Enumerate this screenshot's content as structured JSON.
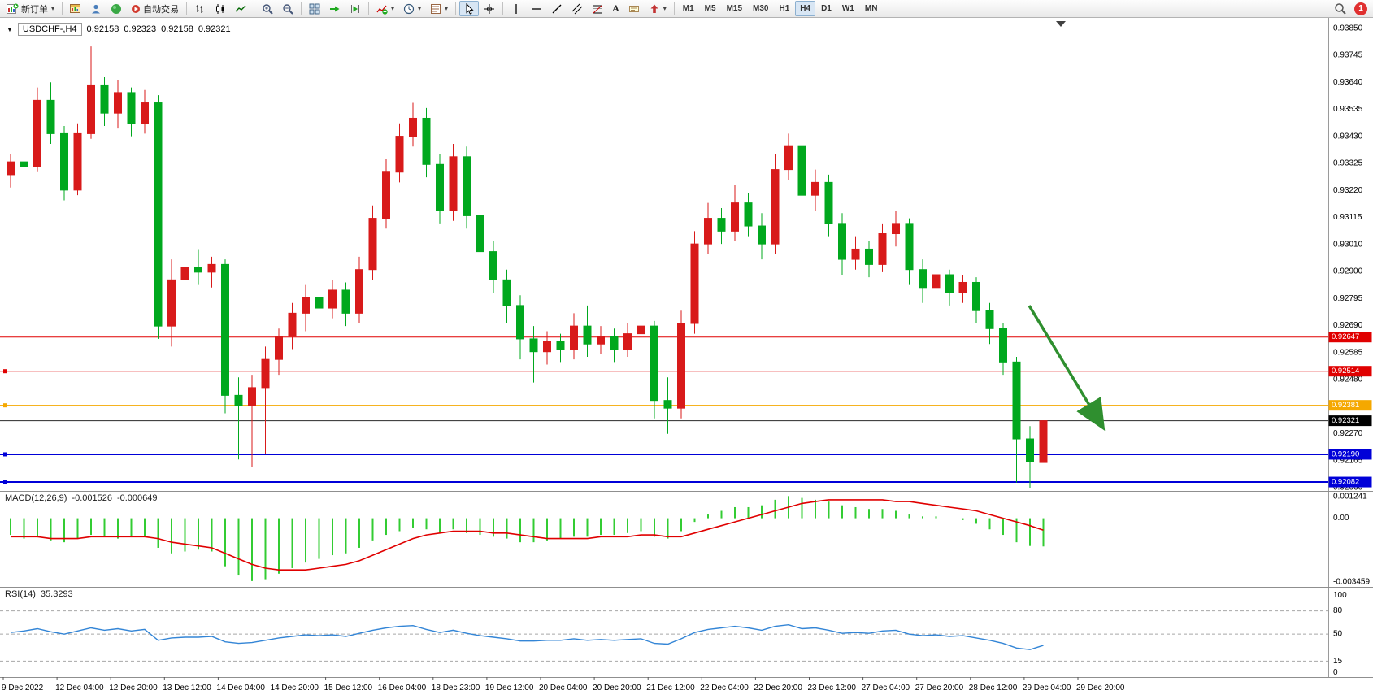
{
  "window": {
    "badge_count": "1"
  },
  "toolbar": {
    "active_timeframe": "H4",
    "items": [
      {
        "name": "new-order-button",
        "icon": "new-order-icon",
        "label": "新订单",
        "caret": true
      },
      {
        "separator": true
      },
      {
        "name": "charts-button",
        "icon": "chart-window-icon"
      },
      {
        "name": "profile-button",
        "icon": "profile-icon"
      },
      {
        "name": "community-button",
        "icon": "community-icon"
      },
      {
        "name": "autotrade-button",
        "icon": "autotrade-icon",
        "label": "自动交易"
      },
      {
        "separator": true
      },
      {
        "name": "bar-chart-button",
        "icon": "bar-chart-icon"
      },
      {
        "name": "candlestick-button",
        "icon": "candlestick-icon"
      },
      {
        "name": "line-chart-button",
        "icon": "line-chart-icon"
      },
      {
        "separator": true
      },
      {
        "name": "zoom-in-button",
        "icon": "zoom-in-icon"
      },
      {
        "name": "zoom-out-button",
        "icon": "zoom-out-icon"
      },
      {
        "separator": true
      },
      {
        "name": "tile-windows-button",
        "icon": "tile-windows-icon"
      },
      {
        "name": "auto-scroll-button",
        "icon": "auto-scroll-icon"
      },
      {
        "name": "chart-shift-button",
        "icon": "chart-shift-icon"
      },
      {
        "separator": true
      },
      {
        "name": "indicators-button",
        "icon": "indicators-icon",
        "caret": true
      },
      {
        "name": "periods-button",
        "icon": "periods-icon",
        "caret": true
      },
      {
        "name": "templates-button",
        "icon": "templates-icon",
        "caret": true
      },
      {
        "separator": true
      },
      {
        "name": "cursor-button",
        "icon": "cursor-icon",
        "active": true
      },
      {
        "name": "crosshair-button",
        "icon": "crosshair-icon"
      },
      {
        "separator": true
      },
      {
        "name": "vertical-line-button",
        "icon": "vertical-line-icon"
      },
      {
        "name": "horizontal-line-button",
        "icon": "horizontal-line-icon"
      },
      {
        "name": "trendline-button",
        "icon": "trendline-icon"
      },
      {
        "name": "channel-button",
        "icon": "channel-icon"
      },
      {
        "name": "fibonacci-button",
        "icon": "fibonacci-icon"
      },
      {
        "name": "text-button",
        "text_icon": "A"
      },
      {
        "name": "text-label-button",
        "icon": "text-label-icon"
      },
      {
        "name": "arrows-button",
        "icon": "arrows-icon",
        "caret": true
      },
      {
        "separator": true
      },
      {
        "name": "tf-m1-button",
        "label": "M1",
        "timeframe": true
      },
      {
        "name": "tf-m5-button",
        "label": "M5",
        "timeframe": true
      },
      {
        "name": "tf-m15-button",
        "label": "M15",
        "timeframe": true
      },
      {
        "name": "tf-m30-button",
        "label": "M30",
        "timeframe": true
      },
      {
        "name": "tf-h1-button",
        "label": "H1",
        "timeframe": true
      },
      {
        "name": "tf-h4-button",
        "label": "H4",
        "timeframe": true
      },
      {
        "name": "tf-d1-button",
        "label": "D1",
        "timeframe": true
      },
      {
        "name": "tf-w1-button",
        "label": "W1",
        "timeframe": true
      },
      {
        "name": "tf-mn-button",
        "label": "MN",
        "timeframe": true
      },
      {
        "spacer": true
      },
      {
        "name": "search-button",
        "icon": "search-icon"
      },
      {
        "name": "notification-badge",
        "badge": "1"
      }
    ]
  },
  "chart": {
    "symbol": "USDCHF-,H4",
    "ohlc": {
      "open": "0.92158",
      "high": "0.92323",
      "low": "0.92158",
      "close": "0.92321"
    },
    "colors": {
      "up": "#d81a1a",
      "down": "#00a81e"
    },
    "price_axis": [
      "0.93850",
      "0.93745",
      "0.93640",
      "0.93535",
      "0.93430",
      "0.93325",
      "0.93220",
      "0.93115",
      "0.93010",
      "0.92900",
      "0.92795",
      "0.92690",
      "0.92585",
      "0.92480",
      "0.92375",
      "0.92270",
      "0.92165",
      "0.92060"
    ],
    "time_axis": [
      "9 Dec 2022",
      "12 Dec 04:00",
      "12 Dec 20:00",
      "13 Dec 12:00",
      "14 Dec 04:00",
      "14 Dec 20:00",
      "15 Dec 12:00",
      "16 Dec 04:00",
      "18 Dec 23:00",
      "19 Dec 12:00",
      "20 Dec 04:00",
      "20 Dec 20:00",
      "21 Dec 12:00",
      "22 Dec 04:00",
      "22 Dec 20:00",
      "23 Dec 12:00",
      "27 Dec 04:00",
      "27 Dec 20:00",
      "28 Dec 12:00",
      "29 Dec 04:00",
      "29 Dec 20:00"
    ],
    "hlines": [
      {
        "label": "0.92647",
        "value": 0.92647,
        "color": "#e00000",
        "width": 1,
        "handle": false
      },
      {
        "label": "0.92514",
        "value": 0.92514,
        "color": "#e00000",
        "width": 1,
        "handle": true
      },
      {
        "label": "0.92381",
        "value": 0.92381,
        "color": "#f5a800",
        "width": 1,
        "handle": true
      },
      {
        "label": "0.92321",
        "value": 0.92321,
        "color": "#2a2a2a",
        "width": 1,
        "handle": false,
        "tag_bg": "#000000"
      },
      {
        "label": "0.92190",
        "value": 0.9219,
        "color": "#0000d8",
        "width": 2,
        "handle": true
      },
      {
        "label": "0.92082",
        "value": 0.92082,
        "color": "#0000d8",
        "width": 2,
        "handle": true
      }
    ],
    "candles": [
      [
        0.9328,
        0.9336,
        0.9323,
        0.9333
      ],
      [
        0.9333,
        0.9345,
        0.9329,
        0.9331
      ],
      [
        0.9331,
        0.9362,
        0.9329,
        0.9357
      ],
      [
        0.9357,
        0.9364,
        0.934,
        0.9344
      ],
      [
        0.9344,
        0.9347,
        0.9318,
        0.9322
      ],
      [
        0.9322,
        0.9348,
        0.932,
        0.9344
      ],
      [
        0.9344,
        0.9378,
        0.9342,
        0.9363
      ],
      [
        0.9363,
        0.9366,
        0.9347,
        0.9352
      ],
      [
        0.9352,
        0.9365,
        0.9346,
        0.936
      ],
      [
        0.936,
        0.9362,
        0.9343,
        0.9348
      ],
      [
        0.9348,
        0.9361,
        0.9344,
        0.9356
      ],
      [
        0.9356,
        0.9359,
        0.9264,
        0.9269
      ],
      [
        0.9269,
        0.9295,
        0.9261,
        0.9287
      ],
      [
        0.9287,
        0.9298,
        0.9283,
        0.9292
      ],
      [
        0.9292,
        0.9299,
        0.9285,
        0.929
      ],
      [
        0.929,
        0.9296,
        0.9284,
        0.9293
      ],
      [
        0.9293,
        0.9295,
        0.9235,
        0.9242
      ],
      [
        0.9242,
        0.9249,
        0.9217,
        0.9238
      ],
      [
        0.9238,
        0.925,
        0.9214,
        0.9245
      ],
      [
        0.9245,
        0.9261,
        0.9219,
        0.9256
      ],
      [
        0.9256,
        0.9268,
        0.925,
        0.9265
      ],
      [
        0.9265,
        0.9278,
        0.926,
        0.9274
      ],
      [
        0.9274,
        0.9285,
        0.9267,
        0.928
      ],
      [
        0.928,
        0.9314,
        0.9256,
        0.9276
      ],
      [
        0.9276,
        0.9287,
        0.9272,
        0.9283
      ],
      [
        0.9283,
        0.9286,
        0.9269,
        0.9274
      ],
      [
        0.9274,
        0.9296,
        0.927,
        0.9291
      ],
      [
        0.9291,
        0.9316,
        0.9287,
        0.9311
      ],
      [
        0.9311,
        0.9334,
        0.9307,
        0.9329
      ],
      [
        0.9329,
        0.9348,
        0.9325,
        0.9343
      ],
      [
        0.9343,
        0.9356,
        0.9339,
        0.935
      ],
      [
        0.935,
        0.9354,
        0.9327,
        0.9332
      ],
      [
        0.9332,
        0.9336,
        0.9309,
        0.9314
      ],
      [
        0.9314,
        0.934,
        0.931,
        0.9335
      ],
      [
        0.9335,
        0.9339,
        0.9307,
        0.9312
      ],
      [
        0.9312,
        0.9317,
        0.9293,
        0.9298
      ],
      [
        0.9298,
        0.9302,
        0.9282,
        0.9287
      ],
      [
        0.9287,
        0.9291,
        0.927,
        0.9277
      ],
      [
        0.9277,
        0.9281,
        0.9256,
        0.9264
      ],
      [
        0.9264,
        0.9269,
        0.9247,
        0.9259
      ],
      [
        0.9259,
        0.9267,
        0.9254,
        0.9263
      ],
      [
        0.9263,
        0.9266,
        0.9255,
        0.926
      ],
      [
        0.926,
        0.9274,
        0.9256,
        0.9269
      ],
      [
        0.9269,
        0.9277,
        0.9257,
        0.9262
      ],
      [
        0.9262,
        0.9269,
        0.9258,
        0.9265
      ],
      [
        0.9265,
        0.9268,
        0.9255,
        0.926
      ],
      [
        0.926,
        0.927,
        0.9257,
        0.9266
      ],
      [
        0.9266,
        0.9272,
        0.9262,
        0.9269
      ],
      [
        0.9269,
        0.9271,
        0.9233,
        0.924
      ],
      [
        0.924,
        0.9249,
        0.9227,
        0.9237
      ],
      [
        0.9237,
        0.9275,
        0.9233,
        0.927
      ],
      [
        0.927,
        0.9306,
        0.9266,
        0.9301
      ],
      [
        0.9301,
        0.9317,
        0.9297,
        0.9311
      ],
      [
        0.9311,
        0.9315,
        0.9301,
        0.9306
      ],
      [
        0.9306,
        0.9324,
        0.9302,
        0.9317
      ],
      [
        0.9317,
        0.9321,
        0.9304,
        0.9308
      ],
      [
        0.9308,
        0.9313,
        0.9295,
        0.9301
      ],
      [
        0.9301,
        0.9336,
        0.9297,
        0.933
      ],
      [
        0.933,
        0.9344,
        0.9326,
        0.9339
      ],
      [
        0.9339,
        0.9341,
        0.9315,
        0.932
      ],
      [
        0.932,
        0.933,
        0.9314,
        0.9325
      ],
      [
        0.9325,
        0.9328,
        0.9304,
        0.9309
      ],
      [
        0.9309,
        0.9313,
        0.9289,
        0.9295
      ],
      [
        0.9295,
        0.9304,
        0.9291,
        0.9299
      ],
      [
        0.9299,
        0.9302,
        0.9288,
        0.9293
      ],
      [
        0.9293,
        0.9309,
        0.929,
        0.9305
      ],
      [
        0.9305,
        0.9314,
        0.93,
        0.9309
      ],
      [
        0.9309,
        0.9311,
        0.9285,
        0.9291
      ],
      [
        0.9291,
        0.9295,
        0.9278,
        0.9284
      ],
      [
        0.9284,
        0.9293,
        0.9247,
        0.9289
      ],
      [
        0.9289,
        0.9291,
        0.9277,
        0.9282
      ],
      [
        0.9282,
        0.9289,
        0.9278,
        0.9286
      ],
      [
        0.9286,
        0.9288,
        0.927,
        0.9275
      ],
      [
        0.9275,
        0.9278,
        0.9262,
        0.9268
      ],
      [
        0.9268,
        0.927,
        0.925,
        0.9255
      ],
      [
        0.9255,
        0.9257,
        0.9208,
        0.9225
      ],
      [
        0.9225,
        0.923,
        0.9206,
        0.9216
      ],
      [
        0.92158,
        0.92323,
        0.92158,
        0.92321
      ]
    ]
  },
  "macd": {
    "label": "MACD(12,26,9)",
    "value_main": "-0.001526",
    "value_signal": "-0.000649",
    "axis": [
      "0.001241",
      "0.00",
      "-0.003459"
    ],
    "colors": {
      "histogram": "#33cc33",
      "signal": "#e00000"
    },
    "histogram": [
      -0.0009,
      -0.0011,
      -0.001,
      -0.0012,
      -0.0013,
      -0.0011,
      -0.0009,
      -0.001,
      -0.0011,
      -0.001,
      -0.001,
      -0.0016,
      -0.0019,
      -0.0018,
      -0.0017,
      -0.0018,
      -0.0026,
      -0.0031,
      -0.0034,
      -0.0033,
      -0.003,
      -0.0027,
      -0.0024,
      -0.0022,
      -0.002,
      -0.0019,
      -0.0016,
      -0.0012,
      -0.0009,
      -0.0007,
      -0.0005,
      -0.0006,
      -0.0008,
      -0.0006,
      -0.0008,
      -0.0009,
      -0.001,
      -0.0011,
      -0.0013,
      -0.0013,
      -0.0012,
      -0.0011,
      -0.001,
      -0.001,
      -0.0009,
      -0.0009,
      -0.0008,
      -0.0007,
      -0.001,
      -0.0011,
      -0.0007,
      -0.0002,
      0.0002,
      0.0004,
      0.0006,
      0.0006,
      0.0007,
      0.001,
      0.0012,
      0.0011,
      0.001,
      0.0009,
      0.0007,
      0.0006,
      0.0005,
      0.0005,
      0.0004,
      0.0002,
      0.0001,
      0.0001,
      0,
      -0.0001,
      -0.0003,
      -0.0006,
      -0.0009,
      -0.0013,
      -0.0015,
      -0.001526
    ],
    "signal": [
      -0.001,
      -0.001,
      -0.001,
      -0.0011,
      -0.0011,
      -0.0011,
      -0.001,
      -0.001,
      -0.001,
      -0.001,
      -0.001,
      -0.0011,
      -0.0013,
      -0.0014,
      -0.0015,
      -0.0016,
      -0.0019,
      -0.0022,
      -0.0025,
      -0.0027,
      -0.0028,
      -0.0028,
      -0.0028,
      -0.0027,
      -0.0026,
      -0.0025,
      -0.0023,
      -0.002,
      -0.0017,
      -0.0014,
      -0.0011,
      -0.0009,
      -0.0008,
      -0.0007,
      -0.0007,
      -0.0007,
      -0.0008,
      -0.0008,
      -0.0009,
      -0.001,
      -0.0011,
      -0.0011,
      -0.0011,
      -0.0011,
      -0.001,
      -0.001,
      -0.001,
      -0.0009,
      -0.0009,
      -0.001,
      -0.001,
      -0.0008,
      -0.0006,
      -0.0004,
      -0.0002,
      0,
      0.0002,
      0.0004,
      0.0006,
      0.0008,
      0.0009,
      0.001,
      0.001,
      0.001,
      0.001,
      0.001,
      0.0009,
      0.0009,
      0.0008,
      0.0007,
      0.0006,
      0.0005,
      0.0004,
      0.0002,
      0,
      -0.0002,
      -0.0004,
      -0.000649
    ]
  },
  "rsi": {
    "label": "RSI(14)",
    "value": "35.3293",
    "axis": [
      "100",
      "80",
      "50",
      "15",
      "0"
    ],
    "levels": [
      80,
      50,
      15
    ],
    "color": "#3385d6",
    "values": [
      52,
      54,
      57,
      53,
      50,
      54,
      58,
      55,
      57,
      54,
      56,
      42,
      45,
      46,
      46,
      47,
      40,
      38,
      39,
      42,
      45,
      47,
      49,
      48,
      49,
      47,
      51,
      55,
      58,
      60,
      61,
      56,
      52,
      55,
      51,
      48,
      46,
      44,
      41,
      41,
      42,
      42,
      44,
      42,
      43,
      42,
      43,
      44,
      38,
      37,
      44,
      52,
      56,
      58,
      60,
      58,
      55,
      60,
      62,
      57,
      58,
      55,
      51,
      52,
      51,
      54,
      55,
      50,
      48,
      49,
      47,
      48,
      45,
      42,
      38,
      32,
      30,
      35.33
    ]
  },
  "arrow": {
    "color": "#2f8f2f",
    "from": [
      1266,
      376
    ],
    "to": [
      1352,
      518
    ]
  }
}
